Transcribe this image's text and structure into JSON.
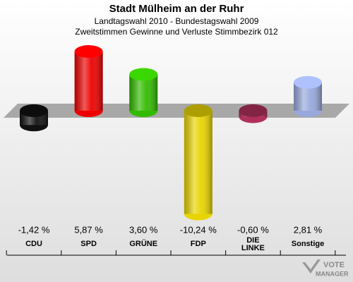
{
  "chart_data": {
    "type": "bar",
    "title": "Stadt Mülheim an der Ruhr",
    "subtitle": [
      "Landtagswahl 2010 - Bundestagswahl 2009",
      "Zweitstimmen Gewinne und Verluste Stimmbezirk 012"
    ],
    "categories": [
      "CDU",
      "SPD",
      "GRÜNE",
      "FDP",
      "DIE LINKE",
      "Sonstige"
    ],
    "values": [
      -1.42,
      5.87,
      3.6,
      -10.24,
      -0.6,
      2.81
    ],
    "value_labels": [
      "-1,42 %",
      "5,87 %",
      "3,60 %",
      "-10,24 %",
      "-0,60 %",
      "2,81 %"
    ],
    "colors": [
      "#111111",
      "#ee0000",
      "#33bb00",
      "#e8d400",
      "#b0305a",
      "#98a8dc"
    ],
    "logo": [
      "VOTE",
      "MANAGER"
    ]
  }
}
